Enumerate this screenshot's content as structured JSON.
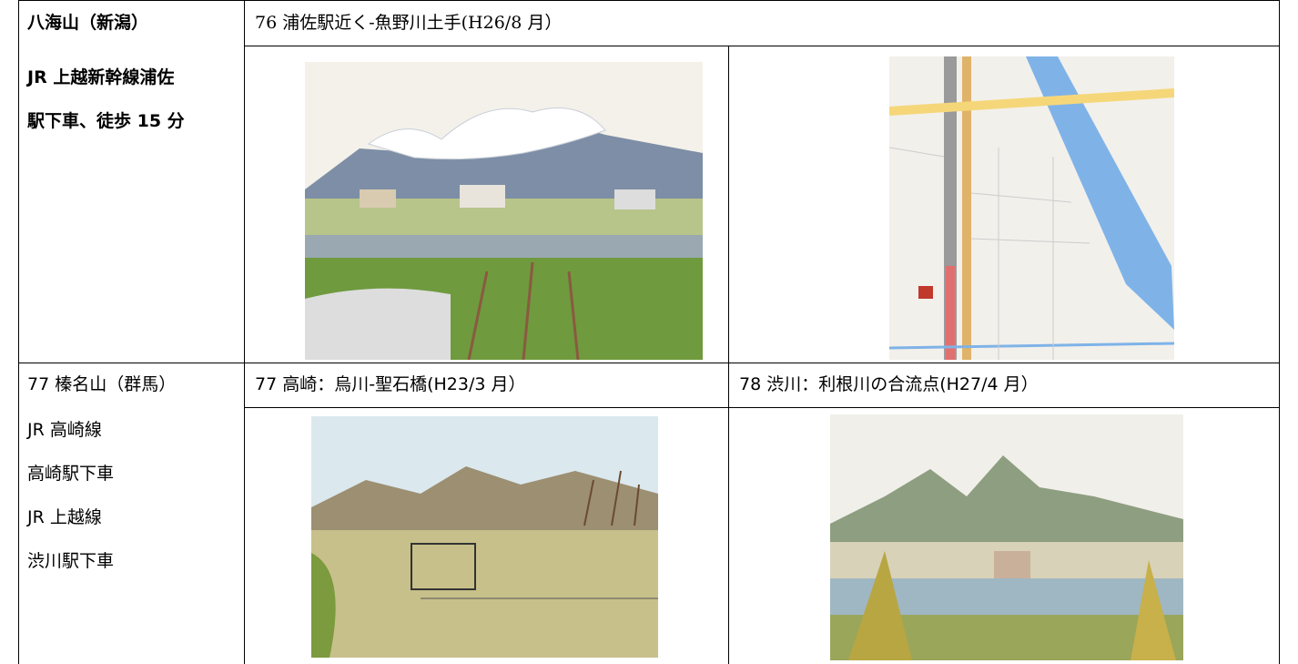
{
  "sections": [
    {
      "mountain": "八海山（新潟）",
      "access": [
        "JR 上越新幹線浦佐",
        "駅下車、徒歩 15 分"
      ],
      "captions": [
        "76 浦佐駅近く‐魚野川土手(H26/8 月）"
      ]
    },
    {
      "mountain": "77 榛名山（群馬）",
      "access": [
        "JR 高崎線",
        "高崎駅下車",
        "JR 上越線",
        "渋川駅下車"
      ],
      "captions": [
        "77 高崎：烏川‐聖石橋(H23/3 月）",
        "78 渋川：利根川の合流点(H27/4 月）"
      ]
    }
  ]
}
